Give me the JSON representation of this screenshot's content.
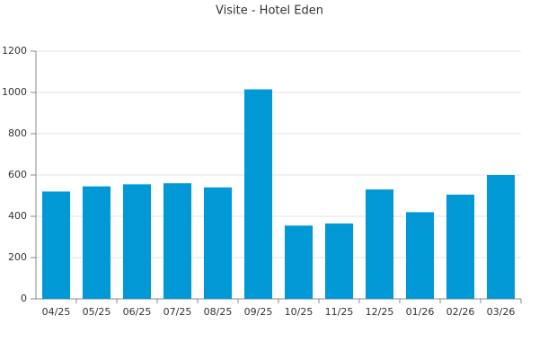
{
  "chart_data": {
    "type": "bar",
    "title": "Visite - Hotel Eden",
    "categories": [
      "04/25",
      "05/25",
      "06/25",
      "07/25",
      "08/25",
      "09/25",
      "10/25",
      "11/25",
      "12/25",
      "01/26",
      "02/26",
      "03/26"
    ],
    "values": [
      520,
      545,
      555,
      560,
      540,
      1015,
      355,
      365,
      530,
      420,
      505,
      600
    ],
    "color": "#0099d6",
    "ylim": [
      0,
      1200
    ],
    "yticks": [
      0,
      200,
      400,
      600,
      800,
      1000,
      1200
    ],
    "grid": true
  }
}
